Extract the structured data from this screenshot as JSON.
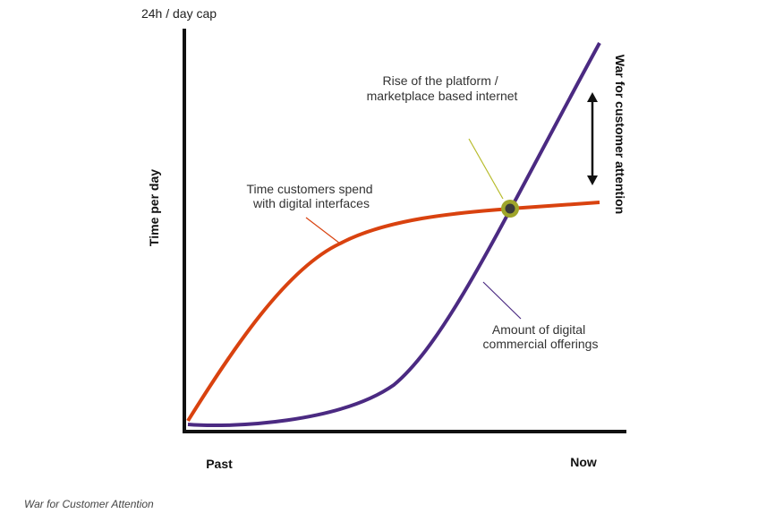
{
  "axes": {
    "y_cap": "24h / day cap",
    "y_label": "Time per day",
    "x_start": "Past",
    "x_end": "Now"
  },
  "side_label": "War for customer attention",
  "annotations": [
    {
      "lines": [
        "Rise of the platform /",
        "marketplace based internet"
      ]
    },
    {
      "lines": [
        "Time customers spend",
        "with digital interfaces"
      ]
    },
    {
      "lines": [
        "Amount of digital",
        "commercial offerings"
      ]
    }
  ],
  "caption": "War for Customer Attention"
}
